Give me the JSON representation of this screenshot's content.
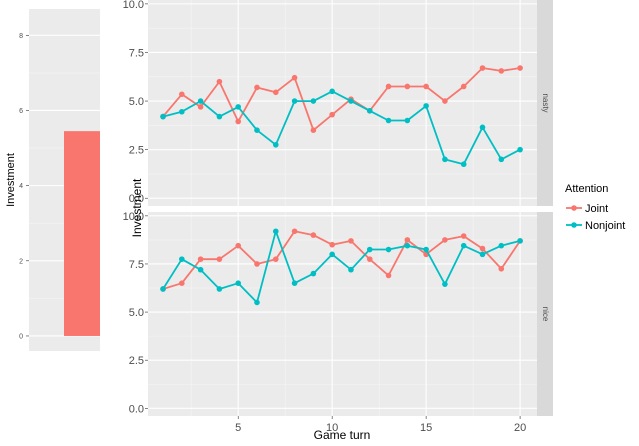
{
  "colors": {
    "panel_bg": "#ebebeb",
    "grid_major": "#ffffff",
    "grid_minor": "#f5f5f5",
    "strip_bg": "#d9d9d9",
    "joint": "#f8766d",
    "nonjoint": "#00bfc4"
  },
  "legend": {
    "title": "Attention",
    "items": [
      {
        "label": "Joint",
        "color": "#f8766d"
      },
      {
        "label": "Nonjoint",
        "color": "#00bfc4"
      }
    ]
  },
  "chart_data": [
    {
      "type": "bar",
      "ylabel": "Investment",
      "ylim": [
        -0.4,
        8.7
      ],
      "yticks": [
        0,
        2,
        4,
        6,
        8
      ],
      "values": [
        5.45
      ],
      "color": "#f8766d"
    },
    {
      "type": "line",
      "xlabel": "Game turn",
      "ylabel": "Investment",
      "xlim": [
        0.2,
        20.9
      ],
      "xticks": [
        5,
        10,
        15,
        20
      ],
      "ylim": [
        -0.4,
        10.2
      ],
      "yticks": [
        0.0,
        2.5,
        5.0,
        7.5,
        10.0
      ],
      "ytick_labels": [
        "0.0",
        "2.5",
        "5.0",
        "7.5",
        "10.0"
      ],
      "facets": [
        {
          "strip": "nasty",
          "series": [
            {
              "name": "Joint",
              "x": [
                1,
                2,
                3,
                4,
                5,
                6,
                7,
                8,
                9,
                10,
                11,
                12,
                13,
                14,
                15,
                16,
                17,
                18,
                19,
                20
              ],
              "values": [
                4.2,
                5.35,
                4.7,
                6.0,
                3.95,
                5.7,
                5.45,
                6.2,
                3.5,
                4.3,
                5.1,
                4.5,
                5.75,
                5.75,
                5.75,
                5.0,
                5.75,
                6.7,
                6.55,
                6.7
              ]
            },
            {
              "name": "Nonjoint",
              "x": [
                1,
                2,
                3,
                4,
                5,
                6,
                7,
                8,
                9,
                10,
                11,
                12,
                13,
                14,
                15,
                16,
                17,
                18,
                19,
                20
              ],
              "values": [
                4.2,
                4.45,
                5.0,
                4.2,
                4.7,
                3.5,
                2.75,
                5.0,
                5.0,
                5.5,
                5.0,
                4.5,
                4.0,
                4.0,
                4.75,
                2.0,
                1.75,
                3.65,
                2.0,
                2.5
              ]
            }
          ]
        },
        {
          "strip": "nice",
          "series": [
            {
              "name": "Joint",
              "x": [
                1,
                2,
                3,
                4,
                5,
                6,
                7,
                8,
                9,
                10,
                11,
                12,
                13,
                14,
                15,
                16,
                17,
                18,
                19,
                20
              ],
              "values": [
                6.2,
                6.5,
                7.75,
                7.75,
                8.45,
                7.5,
                7.75,
                9.2,
                9.0,
                8.5,
                8.7,
                7.75,
                6.9,
                8.75,
                8.0,
                8.75,
                8.95,
                8.3,
                7.25,
                8.7
              ]
            },
            {
              "name": "Nonjoint",
              "x": [
                1,
                2,
                3,
                4,
                5,
                6,
                7,
                8,
                9,
                10,
                11,
                12,
                13,
                14,
                15,
                16,
                17,
                18,
                19,
                20
              ],
              "values": [
                6.2,
                7.75,
                7.2,
                6.2,
                6.5,
                5.5,
                9.2,
                6.5,
                7.0,
                8.0,
                7.2,
                8.25,
                8.25,
                8.45,
                8.25,
                6.45,
                8.45,
                8.0,
                8.45,
                8.7
              ]
            }
          ]
        }
      ]
    }
  ]
}
